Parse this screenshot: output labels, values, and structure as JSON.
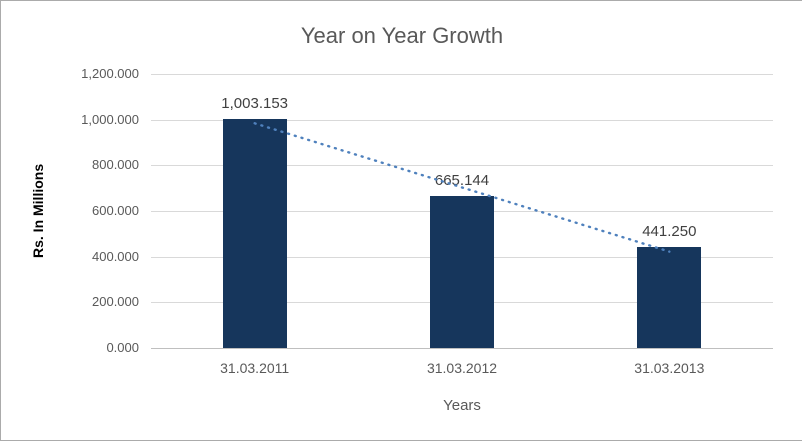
{
  "chart_data": {
    "type": "bar",
    "title": "Year on Year Growth",
    "xlabel": "Years",
    "ylabel": "Rs. In Millions",
    "categories": [
      "31.03.2011",
      "31.03.2012",
      "31.03.2013"
    ],
    "values": [
      1003.153,
      665.144,
      441.25
    ],
    "value_labels": [
      "1,003.153",
      "665.144",
      "441.250"
    ],
    "ylim": [
      0,
      1200
    ],
    "ytick_step": 200,
    "ytick_labels": [
      "0.000",
      "200.000",
      "400.000",
      "600.000",
      "800.000",
      "1,000.000",
      "1,200.000"
    ],
    "grid": true,
    "legend": "none",
    "bar_color": "#16365c",
    "trendline": {
      "type": "linear",
      "style": "dotted",
      "color": "#4f81bd"
    },
    "colors": {
      "title_text": "#595959",
      "axis_text": "#595959",
      "data_label_text": "#404040",
      "gridline": "#d9d9d9",
      "axis_line": "#bfbfbf",
      "border": "#ababab",
      "background": "#ffffff"
    }
  }
}
